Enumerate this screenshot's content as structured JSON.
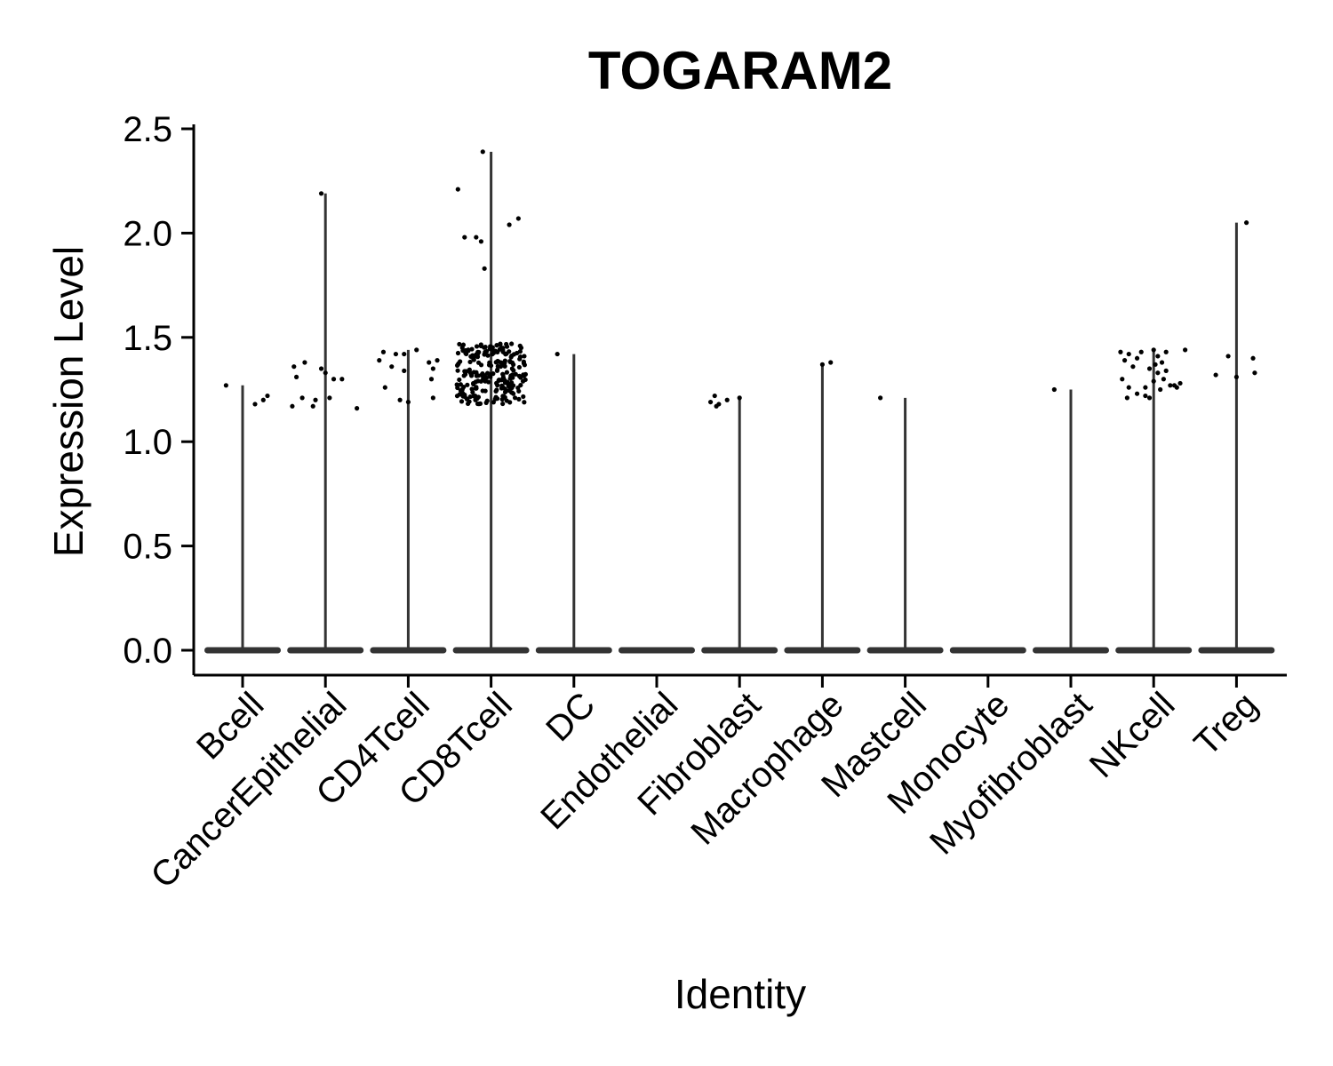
{
  "chart_data": {
    "type": "violin",
    "title": "TOGARAM2",
    "xlabel": "Identity",
    "ylabel": "Expression Level",
    "ylim": [
      -0.12,
      2.5
    ],
    "yticks": [
      "0.0",
      "0.5",
      "1.0",
      "1.5",
      "2.0",
      "2.5"
    ],
    "grid": false,
    "legend": "none",
    "colors": {
      "violin": "#333333",
      "points": "#000000"
    },
    "categories": [
      "Bcell",
      "CancerEpithelial",
      "CD4Tcell",
      "CD8Tcell",
      "DC",
      "Endothelial",
      "Fibroblast",
      "Macrophage",
      "Mastcell",
      "Monocyte",
      "Myofibroblast",
      "NKcell",
      "Treg"
    ],
    "series": [
      {
        "category": "Bcell",
        "max": 1.27,
        "points": [
          [
            -0.2,
            1.27
          ],
          [
            0.15,
            1.18
          ],
          [
            0.25,
            1.2
          ],
          [
            0.3,
            1.22
          ]
        ]
      },
      {
        "category": "CancerEpithelial",
        "max": 2.19,
        "points": [
          [
            -0.05,
            2.19
          ],
          [
            -0.38,
            1.36
          ],
          [
            -0.35,
            1.31
          ],
          [
            -0.25,
            1.38
          ],
          [
            -0.4,
            1.17
          ],
          [
            -0.28,
            1.21
          ],
          [
            -0.15,
            1.17
          ],
          [
            -0.12,
            1.2
          ],
          [
            -0.05,
            1.35
          ],
          [
            0.0,
            1.33
          ],
          [
            0.05,
            1.21
          ],
          [
            0.1,
            1.3
          ],
          [
            0.2,
            1.3
          ],
          [
            0.38,
            1.16
          ]
        ]
      },
      {
        "category": "CD4Tcell",
        "max": 1.44,
        "points": [
          [
            -0.3,
            1.43
          ],
          [
            -0.35,
            1.39
          ],
          [
            -0.2,
            1.36
          ],
          [
            -0.15,
            1.42
          ],
          [
            -0.05,
            1.34
          ],
          [
            -0.1,
            1.2
          ],
          [
            -0.28,
            1.26
          ],
          [
            0.0,
            1.19
          ],
          [
            0.1,
            1.44
          ],
          [
            0.25,
            1.38
          ],
          [
            0.3,
            1.35
          ],
          [
            0.35,
            1.39
          ],
          [
            0.28,
            1.3
          ],
          [
            0.3,
            1.21
          ],
          [
            -0.05,
            1.42
          ]
        ]
      },
      {
        "category": "CD8Tcell",
        "max": 2.39,
        "points": [
          [
            -0.1,
            2.39
          ],
          [
            -0.4,
            2.21
          ],
          [
            -0.32,
            1.98
          ],
          [
            -0.18,
            1.98
          ],
          [
            -0.12,
            1.96
          ],
          [
            0.22,
            2.04
          ],
          [
            0.33,
            2.07
          ],
          [
            -0.08,
            1.83
          ]
        ],
        "cluster": {
          "count": 230,
          "ymin": 1.18,
          "ymax": 1.47,
          "width": 0.42
        }
      },
      {
        "category": "DC",
        "max": 1.42,
        "points": [
          [
            -0.2,
            1.42
          ]
        ]
      },
      {
        "category": "Endothelial",
        "max": 0.0,
        "points": []
      },
      {
        "category": "Fibroblast",
        "max": 1.22,
        "points": [
          [
            -0.35,
            1.19
          ],
          [
            -0.3,
            1.22
          ],
          [
            -0.28,
            1.17
          ],
          [
            -0.25,
            1.18
          ],
          [
            -0.15,
            1.2
          ],
          [
            0.0,
            1.21
          ]
        ]
      },
      {
        "category": "Macrophage",
        "max": 1.38,
        "points": [
          [
            0.1,
            1.38
          ],
          [
            0.0,
            1.37
          ]
        ]
      },
      {
        "category": "Mastcell",
        "max": 1.21,
        "points": [
          [
            -0.3,
            1.21
          ]
        ]
      },
      {
        "category": "Monocyte",
        "max": 0.0,
        "points": []
      },
      {
        "category": "Myofibroblast",
        "max": 1.25,
        "points": [
          [
            -0.2,
            1.25
          ]
        ]
      },
      {
        "category": "NKcell",
        "max": 1.44,
        "points": [
          [
            -0.4,
            1.43
          ],
          [
            -0.35,
            1.39
          ],
          [
            -0.3,
            1.42
          ],
          [
            -0.25,
            1.36
          ],
          [
            -0.2,
            1.4
          ],
          [
            -0.15,
            1.43
          ],
          [
            -0.38,
            1.3
          ],
          [
            -0.3,
            1.26
          ],
          [
            -0.32,
            1.21
          ],
          [
            -0.2,
            1.23
          ],
          [
            -0.1,
            1.22
          ],
          [
            -0.05,
            1.21
          ],
          [
            0.0,
            1.44
          ],
          [
            0.05,
            1.41
          ],
          [
            0.1,
            1.38
          ],
          [
            0.05,
            1.33
          ],
          [
            0.12,
            1.3
          ],
          [
            0.15,
            1.43
          ],
          [
            0.2,
            1.27
          ],
          [
            0.28,
            1.26
          ],
          [
            0.32,
            1.28
          ],
          [
            0.38,
            1.44
          ],
          [
            -0.05,
            1.35
          ],
          [
            0.0,
            1.29
          ],
          [
            0.08,
            1.25
          ],
          [
            0.15,
            1.34
          ],
          [
            0.25,
            1.27
          ],
          [
            -0.1,
            1.26
          ],
          [
            0.02,
            1.37
          ]
        ]
      },
      {
        "category": "Treg",
        "max": 2.05,
        "points": [
          [
            0.12,
            2.05
          ],
          [
            -0.25,
            1.32
          ],
          [
            -0.1,
            1.41
          ],
          [
            0.0,
            1.31
          ],
          [
            0.2,
            1.4
          ],
          [
            0.22,
            1.33
          ]
        ]
      }
    ]
  }
}
